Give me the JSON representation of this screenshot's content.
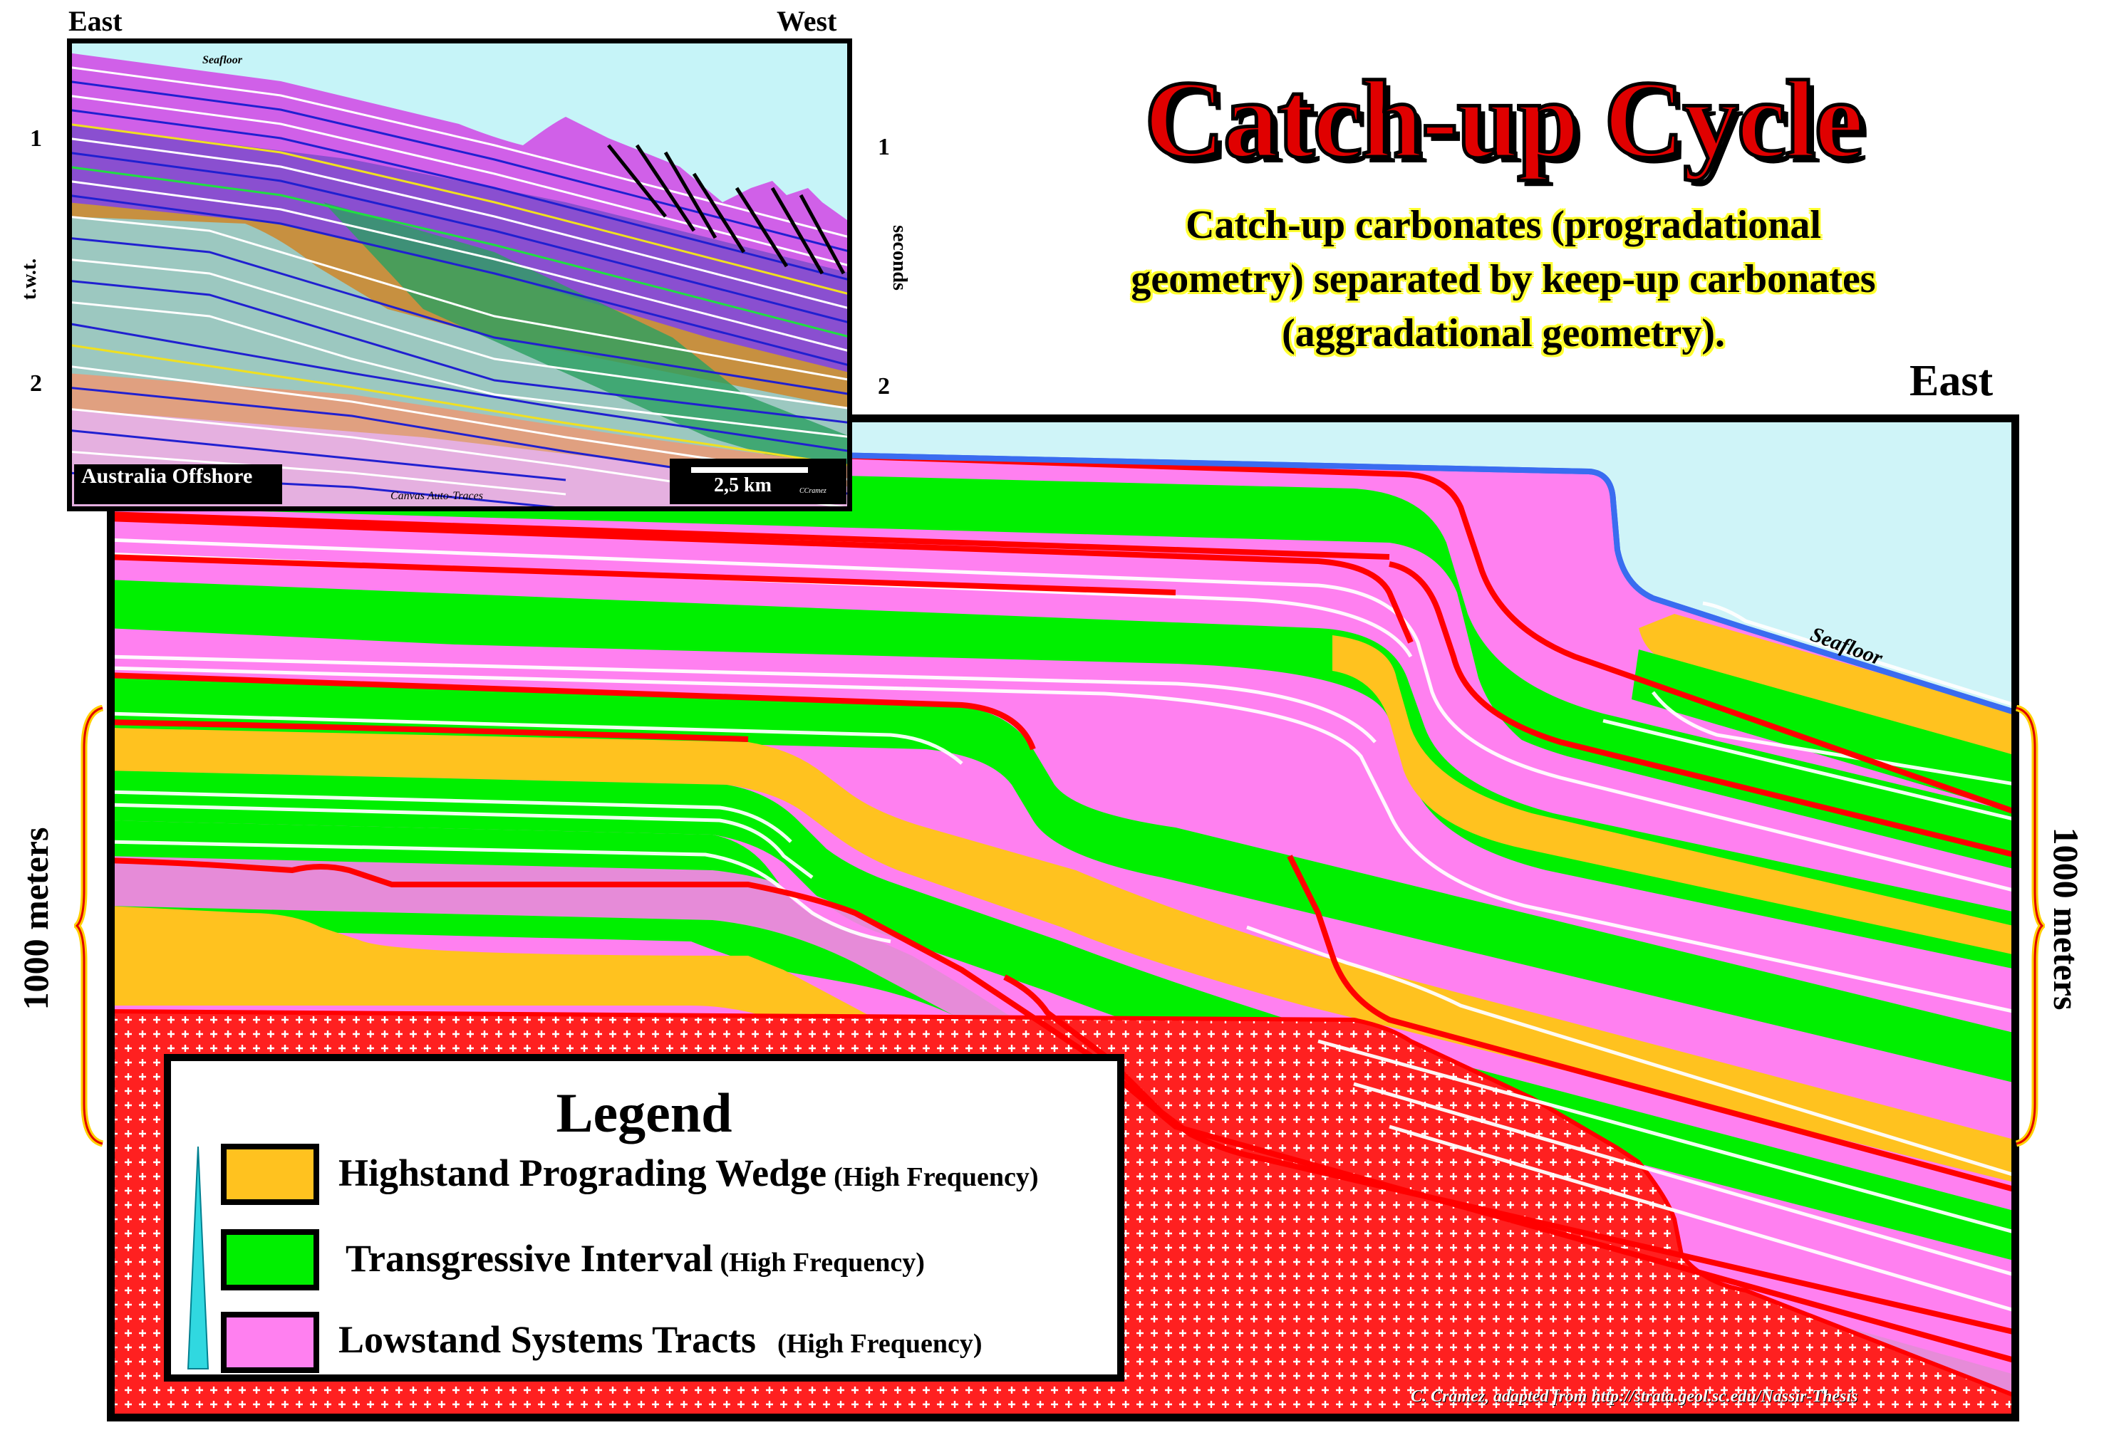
{
  "title": "Catch-up Cycle",
  "subtitle_lines": [
    "Catch-up carbonates (progradational",
    "geometry) separated by keep-up carbonates",
    "(aggradational geometry)."
  ],
  "colors": {
    "highstand": "#ffc21f",
    "transgressive": "#00f000",
    "lowstand": "#ff80f0",
    "sequence_boundary": "#ff0000",
    "basement": "#ff2020",
    "seawater": "#cff4f8",
    "seafloor_line": "#3a6cf0"
  },
  "inset": {
    "left_label": "East",
    "right_label": "West",
    "left_axis_title": "t.w.t.",
    "right_axis_title": "seconds",
    "ticks": [
      "1",
      "2"
    ],
    "location_label": "Australia Offshore",
    "scale_label": "2,5 km",
    "scale_credit": "CCramez",
    "seafloor_label": "Seafloor",
    "footer_label": "Canvas Auto-Traces"
  },
  "main": {
    "direction_label": "East",
    "seafloor_label": "Seafloor",
    "scale_left": "1000 meters",
    "scale_right": "1000 meters",
    "credit": "C. Cramez, adapted from http://strata.geol.sc.edu/Nassir-Thesis"
  },
  "legend": {
    "title": "Legend",
    "items": [
      {
        "label": "Highstand Prograding Wedge",
        "note": "(High Frequency)",
        "icon": "highstand-swatch"
      },
      {
        "label": "Transgressive Interval",
        "note": "(High Frequency)",
        "icon": "transgressive-swatch"
      },
      {
        "label": "Lowstand Systems Tracts",
        "note": "(High Frequency)",
        "icon": "lowstand-swatch"
      }
    ]
  }
}
